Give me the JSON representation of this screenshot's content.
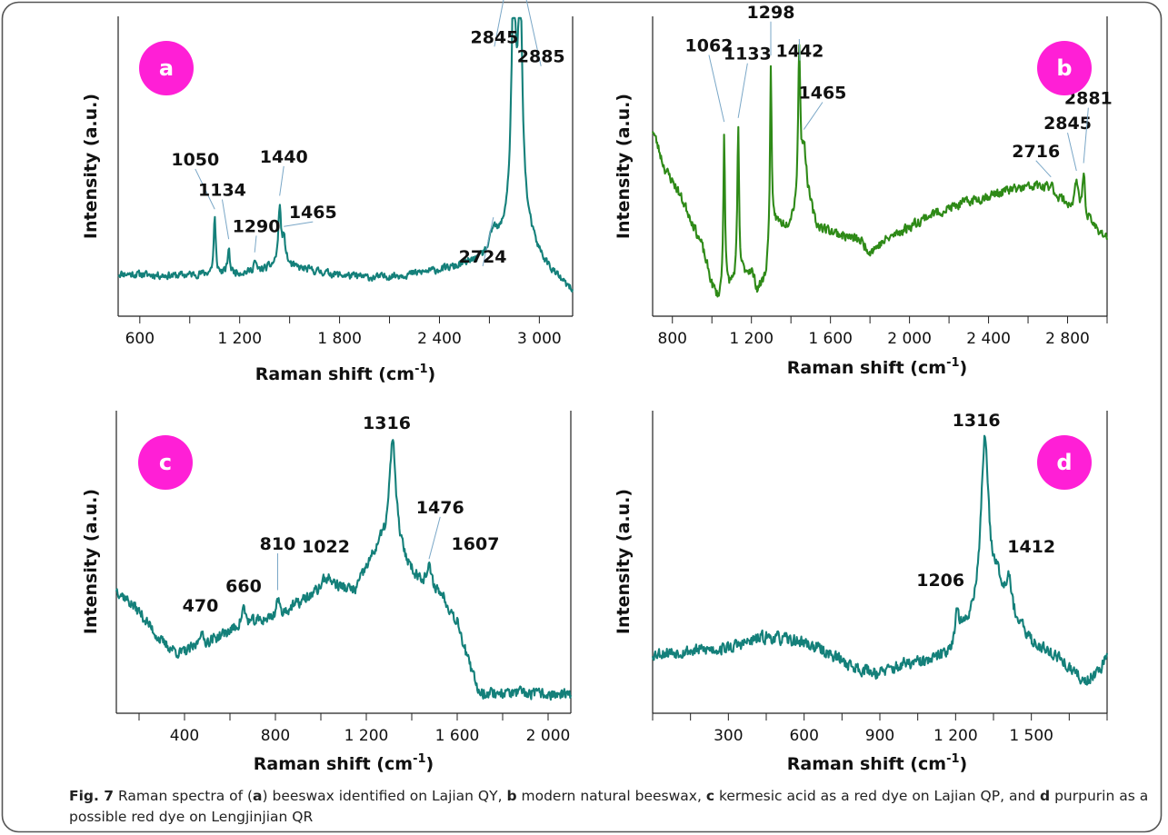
{
  "figure": {
    "fig_label": "Fig. 7",
    "caption_parts": [
      {
        "t": "  Raman spectra of (",
        "b": false
      },
      {
        "t": "a",
        "b": true
      },
      {
        "t": ") beeswax identified on Lajian QY, ",
        "b": false
      },
      {
        "t": "b",
        "b": true
      },
      {
        "t": " modern natural beeswax, ",
        "b": false
      },
      {
        "t": "c",
        "b": true
      },
      {
        "t": " kermesic acid as a red dye on Lajian QP, and ",
        "b": false
      },
      {
        "t": "d",
        "b": true
      },
      {
        "t": " purpurin as a possible red dye on Lengjinjian QR",
        "b": false
      }
    ]
  },
  "colors": {
    "teal": "#14807a",
    "green": "#2e8a17",
    "badge": "#ff1fd6",
    "frame": "#555555"
  },
  "chart_data": [
    {
      "type": "line",
      "panel_label": "a",
      "xlabel": "Raman shift (cm",
      "xlabel_sup": "-1",
      "xlabel_end": ")",
      "ylabel": "Intensity (a.u.)",
      "xlim": [
        470,
        3200
      ],
      "ylim": [
        0,
        100
      ],
      "ticks": [
        600,
        1200,
        1800,
        2400,
        3000
      ],
      "tick_labels": [
        "600",
        "1 200",
        "1 800",
        "2 400",
        "3 000"
      ],
      "color": "#14807a",
      "baseline": [
        [
          470,
          12.0
        ],
        [
          800,
          11.3
        ],
        [
          1000,
          12.0
        ],
        [
          1300,
          12.5
        ],
        [
          1420,
          15.0
        ],
        [
          1600,
          13.5
        ],
        [
          1800,
          11.5
        ],
        [
          2000,
          10.5
        ],
        [
          2200,
          11.5
        ],
        [
          2500,
          14.0
        ],
        [
          2700,
          17.0
        ],
        [
          2800,
          21.0
        ],
        [
          2950,
          19.0
        ],
        [
          3050,
          13.0
        ],
        [
          3200,
          5.0
        ]
      ],
      "peaks": [
        [
          1050,
          20,
          7
        ],
        [
          1134,
          9,
          7
        ],
        [
          1290,
          4,
          10
        ],
        [
          1440,
          20,
          9
        ],
        [
          1465,
          9,
          14
        ],
        [
          2724,
          7,
          25
        ],
        [
          2845,
          80,
          14
        ],
        [
          2885,
          72,
          16
        ],
        [
          2870,
          18,
          60
        ]
      ],
      "noise": 1.2,
      "seed": 11,
      "annotations": [
        {
          "x": 1050,
          "label": "1050",
          "lx": 933,
          "ly": 51
        },
        {
          "x": 1134,
          "label": "1134",
          "lx": 1095,
          "ly": 40
        },
        {
          "x": 1290,
          "label": "1290",
          "lx": 1300,
          "ly": 27
        },
        {
          "x": 1440,
          "label": "1440",
          "lx": 1465,
          "ly": 52
        },
        {
          "x": 1465,
          "label": "1465",
          "lx": 1640,
          "ly": 32
        },
        {
          "x": 2724,
          "label": "2724",
          "lx": 2660,
          "ly": 16
        },
        {
          "x": 2845,
          "label": "2845",
          "lx": 2730,
          "ly": 95
        },
        {
          "x": 2885,
          "label": "2885",
          "lx": 3010,
          "ly": 88
        }
      ]
    },
    {
      "type": "line",
      "panel_label": "b",
      "xlabel": "Raman shift (cm",
      "xlabel_sup": "-1",
      "xlabel_end": ")",
      "ylabel": "Intensity (a.u.)",
      "xlim": [
        700,
        3000
      ],
      "ylim": [
        0,
        100
      ],
      "ticks": [
        800,
        1200,
        1600,
        2000,
        2400,
        2800
      ],
      "tick_labels": [
        "800",
        "1 200",
        "1 600",
        "2 000",
        "2 400",
        "2 800"
      ],
      "color": "#2e8a17",
      "baseline": [
        [
          700,
          64
        ],
        [
          760,
          50
        ],
        [
          820,
          43
        ],
        [
          880,
          34
        ],
        [
          950,
          22
        ],
        [
          1000,
          8
        ],
        [
          1030,
          3
        ],
        [
          1100,
          8
        ],
        [
          1150,
          12
        ],
        [
          1200,
          13
        ],
        [
          1230,
          6
        ],
        [
          1270,
          10
        ],
        [
          1320,
          30
        ],
        [
          1380,
          29
        ],
        [
          1430,
          34
        ],
        [
          1480,
          40
        ],
        [
          1530,
          29
        ],
        [
          1650,
          26
        ],
        [
          1750,
          24
        ],
        [
          1800,
          20
        ],
        [
          1900,
          25
        ],
        [
          2100,
          33
        ],
        [
          2300,
          38
        ],
        [
          2500,
          42
        ],
        [
          2650,
          43.5
        ],
        [
          2780,
          38
        ],
        [
          2900,
          31
        ],
        [
          3000,
          25
        ]
      ],
      "peaks": [
        [
          1062,
          58,
          5
        ],
        [
          1133,
          54,
          5
        ],
        [
          1298,
          66,
          5
        ],
        [
          1442,
          54,
          7
        ],
        [
          1465,
          18,
          12
        ],
        [
          2716,
          3,
          20
        ],
        [
          2845,
          11,
          9
        ],
        [
          2881,
          16,
          8
        ]
      ],
      "noise": 1.6,
      "seed": 23,
      "annotations": [
        {
          "x": 1062,
          "label": "1062",
          "lx": 985,
          "ly": 92
        },
        {
          "x": 1133,
          "label": "1133",
          "lx": 1180,
          "ly": 89
        },
        {
          "x": 1298,
          "label": "1298",
          "lx": 1298,
          "ly": 104
        },
        {
          "x": 1442,
          "label": "1442",
          "lx": 1445,
          "ly": 90
        },
        {
          "x": 1465,
          "label": "1465",
          "lx": 1560,
          "ly": 75
        },
        {
          "x": 2716,
          "label": "2716",
          "lx": 2640,
          "ly": 54
        },
        {
          "x": 2845,
          "label": "2845",
          "lx": 2800,
          "ly": 64
        },
        {
          "x": 2881,
          "label": "2881",
          "lx": 2905,
          "ly": 73
        }
      ]
    },
    {
      "type": "line",
      "panel_label": "c",
      "xlabel": "Raman shift (cm",
      "xlabel_sup": "-1",
      "xlabel_end": ")",
      "ylabel": "Intensity (a.u.)",
      "xlim": [
        100,
        2100
      ],
      "ylim": [
        0,
        100
      ],
      "ticks": [
        400,
        800,
        1200,
        1600,
        2000
      ],
      "tick_labels": [
        "400",
        "800",
        "1 200",
        "1 600",
        "2 000"
      ],
      "color": "#14807a",
      "baseline": [
        [
          100,
          41
        ],
        [
          200,
          33
        ],
        [
          300,
          22
        ],
        [
          380,
          18
        ],
        [
          450,
          20
        ],
        [
          550,
          24
        ],
        [
          650,
          28
        ],
        [
          800,
          31
        ],
        [
          950,
          38
        ],
        [
          1050,
          42
        ],
        [
          1150,
          40
        ],
        [
          1200,
          48
        ],
        [
          1260,
          56
        ],
        [
          1350,
          52
        ],
        [
          1420,
          45
        ],
        [
          1480,
          43
        ],
        [
          1540,
          38
        ],
        [
          1600,
          28
        ],
        [
          1660,
          12
        ],
        [
          1700,
          4
        ],
        [
          1800,
          4
        ],
        [
          2000,
          3.5
        ],
        [
          2100,
          3
        ]
      ],
      "peaks": [
        [
          470,
          5,
          10
        ],
        [
          660,
          6,
          10
        ],
        [
          810,
          6,
          8
        ],
        [
          1022,
          4,
          25
        ],
        [
          1316,
          40,
          18
        ],
        [
          1476,
          5,
          10
        ],
        [
          1607,
          2,
          18
        ]
      ],
      "noise": 1.8,
      "seed": 37,
      "annotations": [
        {
          "x": 470,
          "label": "470",
          "lx": 470,
          "ly": 33,
          "plain": true
        },
        {
          "x": 660,
          "label": "660",
          "lx": 660,
          "ly": 40,
          "plain": true
        },
        {
          "x": 810,
          "label": "810",
          "lx": 810,
          "ly": 55
        },
        {
          "x": 1022,
          "label": "1022",
          "lx": 1022,
          "ly": 54,
          "plain": true
        },
        {
          "x": 1316,
          "label": "1316",
          "lx": 1290,
          "ly": 98,
          "plain": true
        },
        {
          "x": 1476,
          "label": "1476",
          "lx": 1525,
          "ly": 68
        },
        {
          "x": 1607,
          "label": "1607",
          "lx": 1680,
          "ly": 55,
          "plain": true
        }
      ]
    },
    {
      "type": "line",
      "panel_label": "d",
      "xlabel": "Raman shift (cm",
      "xlabel_sup": "-1",
      "xlabel_end": ")",
      "ylabel": "Intensity (a.u.)",
      "xlim": [
        0,
        1800
      ],
      "ylim": [
        0,
        100
      ],
      "ticks": [
        300,
        600,
        900,
        1200,
        1500
      ],
      "tick_labels": [
        "300",
        "600",
        "900",
        "1 200",
        "1 500"
      ],
      "color": "#14807a",
      "baseline": [
        [
          0,
          18
        ],
        [
          150,
          19
        ],
        [
          300,
          20
        ],
        [
          450,
          24
        ],
        [
          600,
          22
        ],
        [
          700,
          18
        ],
        [
          800,
          13
        ],
        [
          900,
          11
        ],
        [
          1000,
          14
        ],
        [
          1100,
          15
        ],
        [
          1200,
          19
        ],
        [
          1300,
          36
        ],
        [
          1380,
          38
        ],
        [
          1430,
          30
        ],
        [
          1500,
          22
        ],
        [
          1600,
          17
        ],
        [
          1680,
          10
        ],
        [
          1720,
          8
        ],
        [
          1800,
          16
        ]
      ],
      "peaks": [
        [
          1206,
          12,
          12
        ],
        [
          1316,
          58,
          17
        ],
        [
          1412,
          12,
          11
        ],
        [
          1360,
          6,
          20
        ]
      ],
      "noise": 2.0,
      "seed": 53,
      "annotations": [
        {
          "x": 1206,
          "label": "1206",
          "lx": 1140,
          "ly": 42,
          "plain": true
        },
        {
          "x": 1316,
          "label": "1316",
          "lx": 1282,
          "ly": 99,
          "plain": true
        },
        {
          "x": 1412,
          "label": "1412",
          "lx": 1500,
          "ly": 54,
          "plain": true
        }
      ]
    }
  ]
}
